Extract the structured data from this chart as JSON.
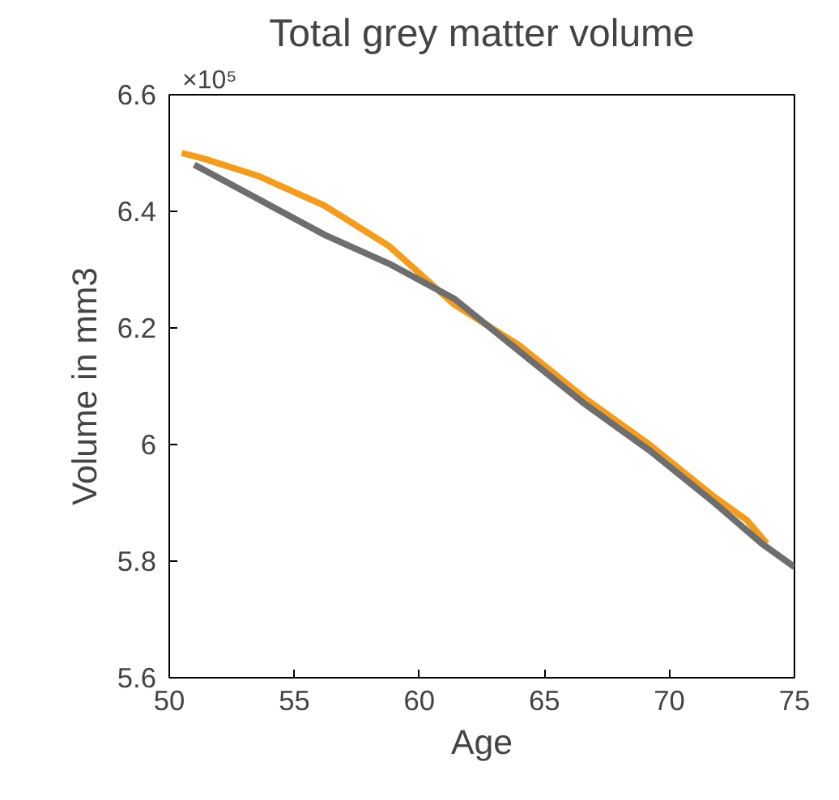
{
  "chart_data": {
    "type": "line",
    "title": "Total grey matter volume",
    "xlabel": "Age",
    "ylabel": "Volume in mm3",
    "annotations": [
      "×10⁵"
    ],
    "xlim": [
      50,
      75
    ],
    "xticks": [
      50,
      55,
      60,
      65,
      70,
      75
    ],
    "ylim": [
      5.6,
      6.6
    ],
    "yticks": [
      5.6,
      5.8,
      6,
      6.2,
      6.4,
      6.6
    ],
    "grid": false,
    "series": [
      {
        "color": "#f39c1e",
        "x": [
          50.5,
          51.4,
          53.6,
          56.2,
          58.8,
          61.4,
          64.0,
          66.6,
          69.2,
          71.8,
          73.1,
          73.9
        ],
        "values": [
          6.5,
          6.49,
          6.46,
          6.41,
          6.34,
          6.24,
          6.17,
          6.08,
          6.0,
          5.91,
          5.87,
          5.83
        ]
      },
      {
        "color": "#6e6e6e",
        "x": [
          51.0,
          53.6,
          56.2,
          58.8,
          61.4,
          64.0,
          66.6,
          69.2,
          71.8,
          73.7,
          75
        ],
        "values": [
          6.48,
          6.42,
          6.36,
          6.31,
          6.25,
          6.16,
          6.07,
          5.99,
          5.9,
          5.83,
          5.79
        ]
      }
    ]
  }
}
